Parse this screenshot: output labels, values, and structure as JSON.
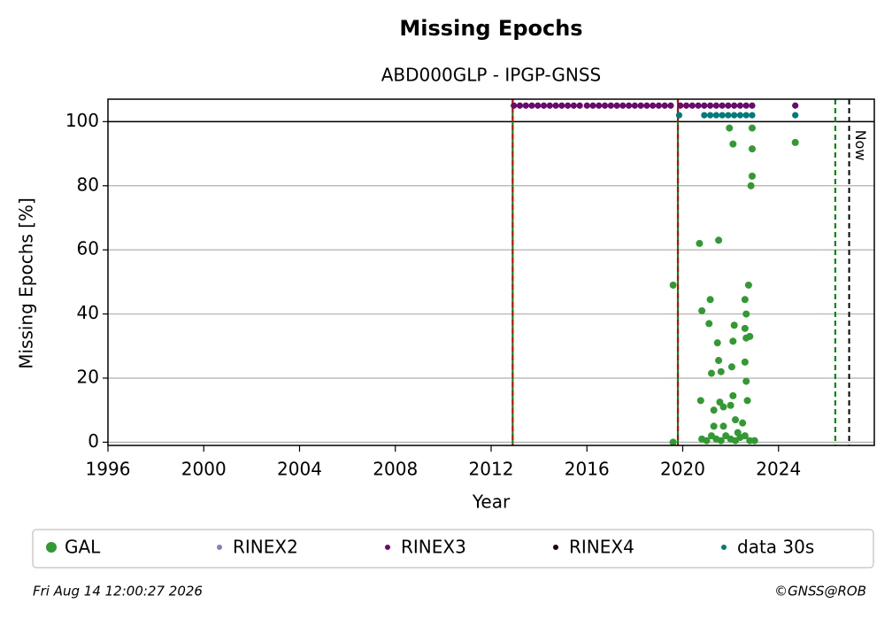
{
  "chart_data": {
    "type": "scatter",
    "title": "Missing Epochs",
    "subtitle": "ABD000GLP - IPGP-GNSS",
    "xlabel": "Year",
    "ylabel": "Missing Epochs [%]",
    "xlim": [
      1996,
      2028
    ],
    "xticks": [
      1996,
      2000,
      2004,
      2008,
      2012,
      2016,
      2020,
      2024
    ],
    "ylim": [
      -1,
      107
    ],
    "yticks": [
      0,
      20,
      40,
      60,
      80,
      100
    ],
    "grid": true,
    "hline": 100,
    "vlines": [
      {
        "x": 2012.9,
        "colors": [
          "#008000",
          "#cc0000"
        ]
      },
      {
        "x": 2019.8,
        "colors": [
          "#008000",
          "#cc0000"
        ]
      },
      {
        "x": 2026.37,
        "colors": [
          "#008000"
        ]
      },
      {
        "x": 2026.95,
        "colors": [
          "#000000"
        ],
        "label": "Now"
      }
    ],
    "legend": "bottom",
    "series": [
      {
        "name": "GAL",
        "color": "#339933",
        "x": [
          2019.6,
          2019.6,
          2020.7,
          2020.8,
          2020.75,
          2021.1,
          2021.15,
          2021.2,
          2021.3,
          2021.5,
          2021.45,
          2021.5,
          2021.6,
          2021.55,
          2021.7,
          2021.95,
          2022.1,
          2022.15,
          2022.1,
          2022.05,
          2022.1,
          2022.0,
          2022.2,
          2022.6,
          2022.65,
          2022.6,
          2022.65,
          2022.75,
          2022.8,
          2022.6,
          2022.65,
          2022.7,
          2022.9,
          2022.9,
          2022.9,
          2022.85,
          2024.7,
          2020.8,
          2021.0,
          2021.2,
          2021.4,
          2021.6,
          2021.8,
          2022.0,
          2022.2,
          2022.4,
          2022.6,
          2022.8,
          2023.0,
          2021.3,
          2021.7,
          2022.3,
          2022.5
        ],
        "values": [
          0,
          49,
          62,
          41,
          13,
          37,
          44.5,
          21.5,
          10,
          63,
          31,
          25.5,
          22,
          12.5,
          11,
          98,
          93,
          36.5,
          31.5,
          23.5,
          14.5,
          11.5,
          7,
          44.5,
          40,
          35.5,
          32.5,
          49,
          33,
          25,
          19,
          13,
          98,
          91.5,
          83,
          80,
          93.5,
          1,
          0.5,
          2,
          1,
          0.5,
          2,
          1,
          0.5,
          1.5,
          2,
          0.5,
          0.5,
          5,
          5,
          3,
          6
        ]
      },
      {
        "name": "RINEX2",
        "color": "#8080c0",
        "x": [],
        "values": []
      },
      {
        "name": "RINEX3",
        "color": "#6a0a6a",
        "x": [
          2012.95,
          2013.2,
          2013.45,
          2013.7,
          2013.95,
          2014.2,
          2014.45,
          2014.7,
          2014.95,
          2015.2,
          2015.45,
          2015.7,
          2016.0,
          2016.25,
          2016.5,
          2016.75,
          2017.0,
          2017.25,
          2017.5,
          2017.75,
          2018.0,
          2018.25,
          2018.5,
          2018.75,
          2019.0,
          2019.25,
          2019.5,
          2019.9,
          2020.15,
          2020.4,
          2020.65,
          2020.9,
          2021.15,
          2021.4,
          2021.65,
          2021.9,
          2022.15,
          2022.4,
          2022.65,
          2022.9,
          2024.7
        ],
        "values": [
          105,
          105,
          105,
          105,
          105,
          105,
          105,
          105,
          105,
          105,
          105,
          105,
          105,
          105,
          105,
          105,
          105,
          105,
          105,
          105,
          105,
          105,
          105,
          105,
          105,
          105,
          105,
          105,
          105,
          105,
          105,
          105,
          105,
          105,
          105,
          105,
          105,
          105,
          105,
          105,
          105
        ]
      },
      {
        "name": "RINEX4",
        "color": "#1a0010",
        "x": [],
        "values": []
      },
      {
        "name": "data 30s",
        "color": "#007a7a",
        "x": [
          2019.85,
          2020.9,
          2021.15,
          2021.4,
          2021.65,
          2021.9,
          2022.15,
          2022.4,
          2022.65,
          2022.9,
          2024.7
        ],
        "values": [
          102,
          102,
          102,
          102,
          102,
          102,
          102,
          102,
          102,
          102,
          102
        ]
      }
    ]
  },
  "footer": {
    "date": "Fri Aug 14 12:00:27 2026",
    "credit": "©GNSS@ROB"
  }
}
